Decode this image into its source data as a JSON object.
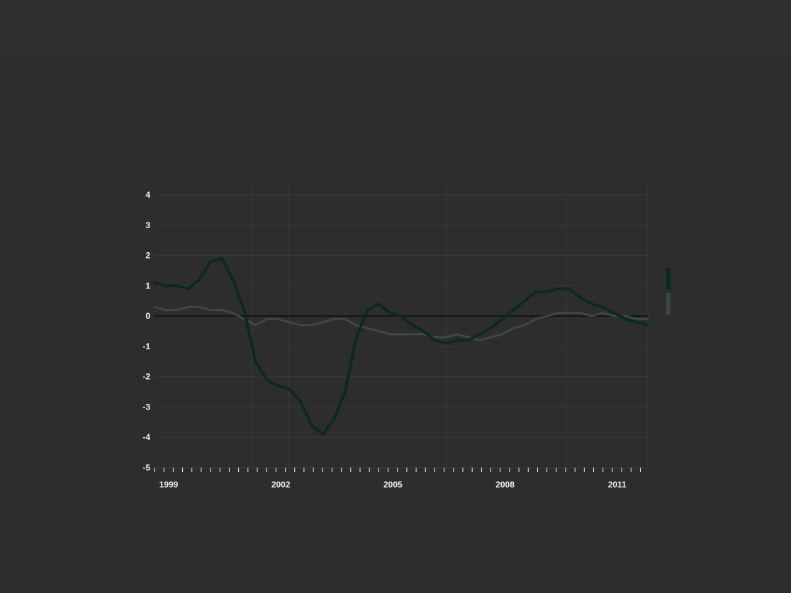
{
  "title": {
    "kicker": "",
    "headline": ""
  },
  "y_axis_label": "",
  "y_axis_note": "",
  "series_note": "",
  "source": "",
  "credit": "",
  "colors": {
    "background": "#2d2d2d",
    "main_series": "#0c2a1c",
    "secondary_series": "#3b4a3f",
    "zero_line": "#141414",
    "grid": "#3a3a33",
    "event_line": "#3d3d2a",
    "text": "#f2f2f2"
  },
  "events": [
    {
      "x": 2001.6,
      "label": ""
    },
    {
      "x": 2002.6,
      "label": ""
    },
    {
      "x": 2006.8,
      "label": ""
    },
    {
      "x": 2010.0,
      "label": ""
    },
    {
      "x": 2012.2,
      "label": ""
    }
  ],
  "chart_data": {
    "type": "line",
    "title": "",
    "xlabel": "",
    "ylabel": "",
    "xlim": [
      1999,
      2012.2
    ],
    "ylim": [
      -5,
      4
    ],
    "yticks": [
      4,
      3,
      2,
      1,
      0,
      -1,
      -2,
      -3,
      -4,
      -5
    ],
    "xticks": [
      1999,
      2002,
      2005,
      2008,
      2011
    ],
    "grid": true,
    "legend": "right",
    "series": [
      {
        "name": "",
        "color": "#0c2a1c",
        "x": [
          1999,
          1999.3,
          1999.6,
          1999.9,
          2000.2,
          2000.5,
          2000.8,
          2001.1,
          2001.4,
          2001.7,
          2002.0,
          2002.3,
          2002.6,
          2002.9,
          2003.2,
          2003.5,
          2003.8,
          2004.1,
          2004.4,
          2004.7,
          2005.0,
          2005.3,
          2005.6,
          2005.9,
          2006.2,
          2006.5,
          2006.8,
          2007.1,
          2007.4,
          2007.7,
          2008.0,
          2008.3,
          2008.6,
          2008.9,
          2009.2,
          2009.5,
          2009.8,
          2010.1,
          2010.4,
          2010.7,
          2011.0,
          2011.3,
          2011.6,
          2011.9,
          2012.2
        ],
        "y": [
          1.1,
          1.0,
          1.0,
          0.9,
          1.2,
          1.8,
          1.9,
          1.2,
          0.2,
          -1.5,
          -2.1,
          -2.3,
          -2.4,
          -2.8,
          -3.6,
          -3.9,
          -3.4,
          -2.5,
          -0.7,
          0.2,
          0.4,
          0.1,
          0.0,
          -0.3,
          -0.5,
          -0.8,
          -0.9,
          -0.8,
          -0.8,
          -0.6,
          -0.4,
          -0.1,
          0.2,
          0.5,
          0.8,
          0.8,
          0.9,
          0.9,
          0.6,
          0.4,
          0.3,
          0.1,
          -0.1,
          -0.2,
          -0.3
        ]
      },
      {
        "name": "",
        "color": "#3b4a3f",
        "x": [
          1999,
          1999.3,
          1999.6,
          1999.9,
          2000.2,
          2000.5,
          2000.8,
          2001.1,
          2001.4,
          2001.7,
          2002.0,
          2002.3,
          2002.6,
          2002.9,
          2003.2,
          2003.5,
          2003.8,
          2004.1,
          2004.4,
          2004.7,
          2005.0,
          2005.3,
          2005.6,
          2005.9,
          2006.2,
          2006.5,
          2006.8,
          2007.1,
          2007.4,
          2007.7,
          2008.0,
          2008.3,
          2008.6,
          2008.9,
          2009.2,
          2009.5,
          2009.8,
          2010.1,
          2010.4,
          2010.7,
          2011.0,
          2011.3,
          2011.6,
          2011.9,
          2012.2
        ],
        "y": [
          0.3,
          0.2,
          0.2,
          0.3,
          0.3,
          0.2,
          0.2,
          0.1,
          -0.1,
          -0.3,
          -0.1,
          -0.1,
          -0.2,
          -0.3,
          -0.3,
          -0.2,
          -0.1,
          -0.1,
          -0.3,
          -0.4,
          -0.5,
          -0.6,
          -0.6,
          -0.6,
          -0.6,
          -0.7,
          -0.7,
          -0.6,
          -0.7,
          -0.8,
          -0.7,
          -0.6,
          -0.4,
          -0.3,
          -0.1,
          0.0,
          0.1,
          0.1,
          0.1,
          0.0,
          0.1,
          0.0,
          0.0,
          -0.1,
          -0.1
        ]
      }
    ]
  }
}
